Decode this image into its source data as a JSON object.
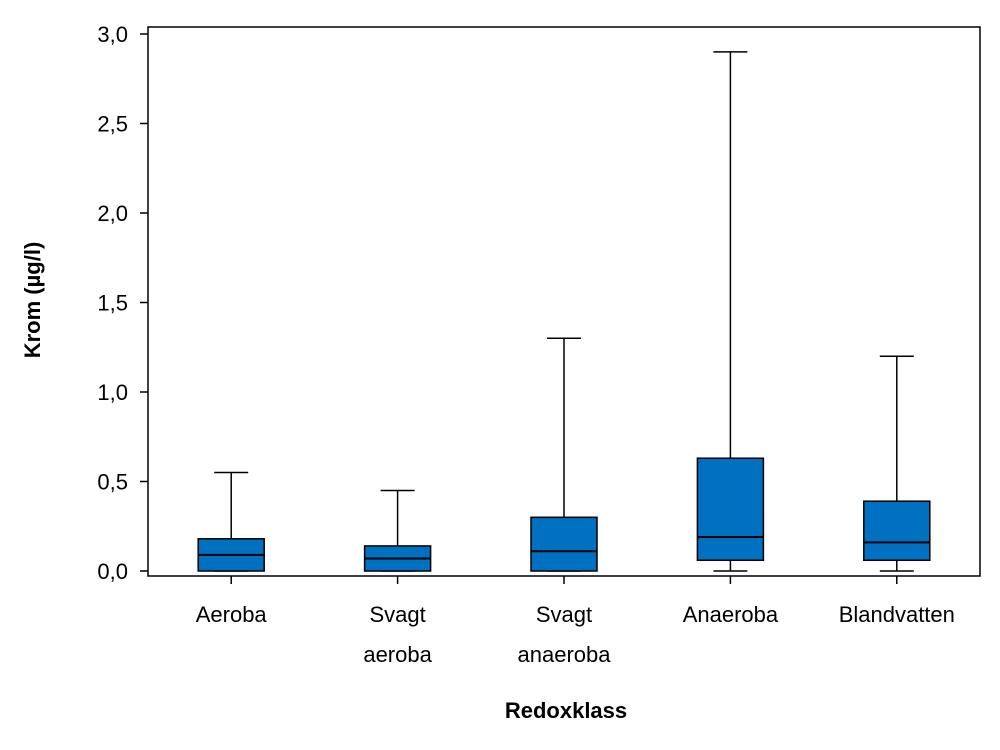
{
  "chart_data": {
    "type": "boxplot",
    "xlabel": "Redoxklass",
    "ylabel": "Krom (µg/l)",
    "ylim": [
      0,
      3.0
    ],
    "yticks": [
      "0,0",
      "0,5",
      "1,0",
      "1,5",
      "2,0",
      "2,5",
      "3,0"
    ],
    "ytick_values": [
      0,
      0.5,
      1.0,
      1.5,
      2.0,
      2.5,
      3.0
    ],
    "box_color": "#0070C0",
    "categories": [
      {
        "label_lines": [
          "Aeroba"
        ],
        "min": 0.0,
        "q1": 0.0,
        "median": 0.09,
        "q3": 0.18,
        "max": 0.55
      },
      {
        "label_lines": [
          "Svagt",
          "aeroba"
        ],
        "min": 0.0,
        "q1": 0.0,
        "median": 0.07,
        "q3": 0.14,
        "max": 0.45
      },
      {
        "label_lines": [
          "Svagt",
          "anaeroba"
        ],
        "min": 0.0,
        "q1": 0.0,
        "median": 0.11,
        "q3": 0.3,
        "max": 1.3
      },
      {
        "label_lines": [
          "Anaeroba"
        ],
        "min": 0.0,
        "q1": 0.06,
        "median": 0.19,
        "q3": 0.63,
        "max": 2.9
      },
      {
        "label_lines": [
          "Blandvatten"
        ],
        "min": 0.0,
        "q1": 0.06,
        "median": 0.16,
        "q3": 0.39,
        "max": 1.2
      }
    ]
  }
}
